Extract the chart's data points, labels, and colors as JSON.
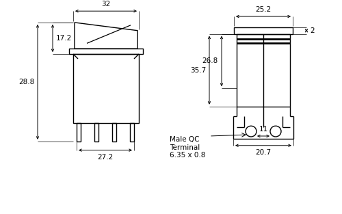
{
  "bg_color": "#ffffff",
  "line_color": "#000000",
  "fs": 7.5,
  "dims": {
    "terminal_label": "Male QC\nTerminal\n6.35 x 0.8"
  }
}
